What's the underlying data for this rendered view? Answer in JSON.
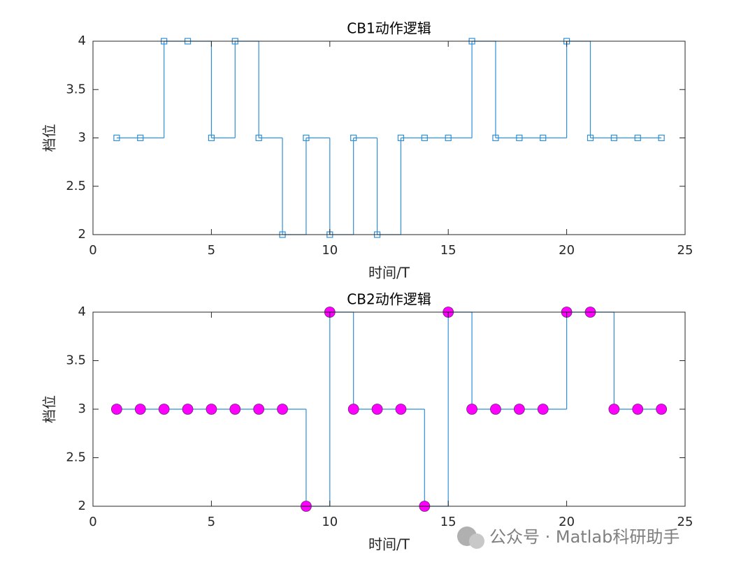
{
  "chart_data": [
    {
      "type": "stairs",
      "title": "CB1动作逻辑",
      "xlabel": "时间/T",
      "ylabel": "档位",
      "x": [
        1,
        2,
        3,
        4,
        5,
        6,
        7,
        8,
        9,
        10,
        11,
        12,
        13,
        14,
        15,
        16,
        17,
        18,
        19,
        20,
        21,
        22,
        23,
        24
      ],
      "values": [
        3,
        3,
        4,
        4,
        3,
        4,
        3,
        2,
        3,
        2,
        3,
        2,
        3,
        3,
        3,
        4,
        3,
        3,
        3,
        4,
        3,
        3,
        3,
        3
      ],
      "color": "#2f8fd8",
      "marker": "square",
      "marker_color": "none",
      "xlim": [
        0,
        25
      ],
      "xticks": [
        0,
        5,
        10,
        15,
        20,
        25
      ],
      "ylim": [
        2,
        4
      ],
      "yticks": [
        2,
        2.5,
        3,
        3.5,
        4
      ]
    },
    {
      "type": "stairs",
      "title": "CB2动作逻辑",
      "xlabel": "时间/T",
      "ylabel": "档位",
      "x": [
        1,
        2,
        3,
        4,
        5,
        6,
        7,
        8,
        9,
        10,
        11,
        12,
        13,
        14,
        15,
        16,
        17,
        18,
        19,
        20,
        21,
        22,
        23,
        24
      ],
      "values": [
        3,
        3,
        3,
        3,
        3,
        3,
        3,
        3,
        2,
        4,
        3,
        3,
        3,
        2,
        4,
        3,
        3,
        3,
        3,
        4,
        4,
        3,
        3,
        3
      ],
      "color": "#2f8fd8",
      "marker": "circle",
      "marker_color": "#ff00ff",
      "xlim": [
        0,
        25
      ],
      "xticks": [
        0,
        5,
        10,
        15,
        20,
        25
      ],
      "ylim": [
        2,
        4
      ],
      "yticks": [
        2,
        2.5,
        3,
        3.5,
        4
      ]
    }
  ],
  "watermark": "公众号 · Matlab科研助手"
}
